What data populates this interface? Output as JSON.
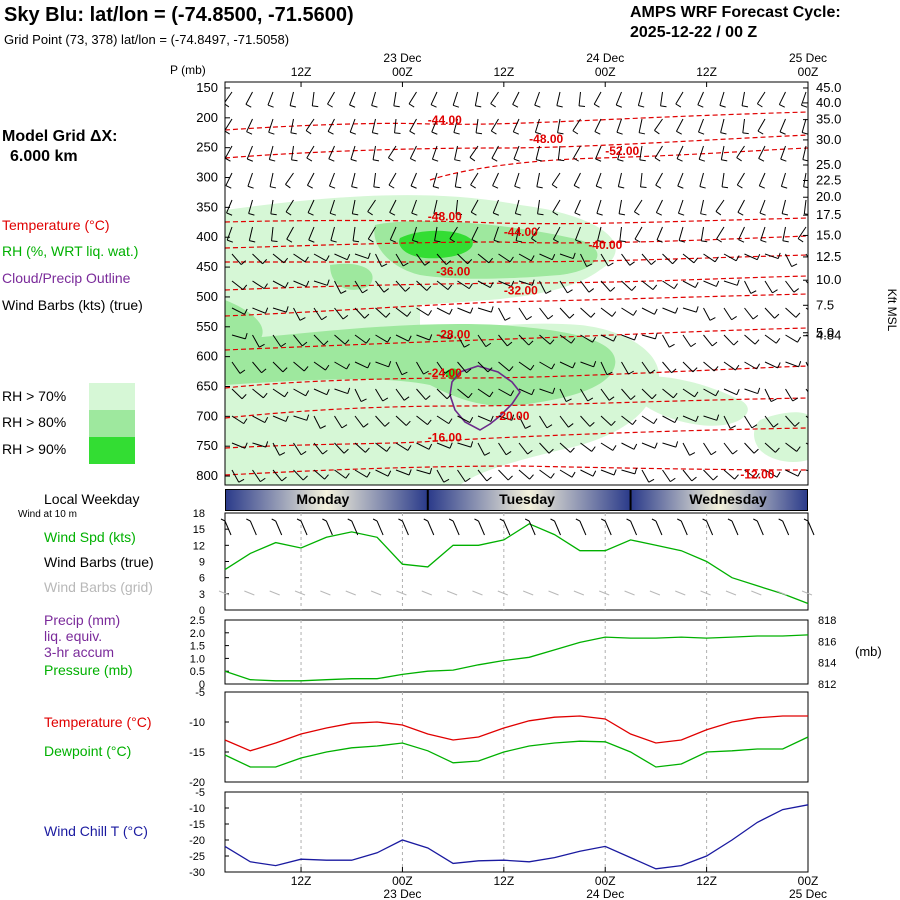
{
  "header": {
    "title": "Sky Blu:  lat/lon = (-74.8500, -71.5600)",
    "grid_point": "Grid Point (73, 378) lat/lon = (-74.8497, -71.5058)",
    "cycle_label": "AMPS WRF Forecast Cycle:",
    "cycle_value": "2025-12-22 / 00  Z"
  },
  "left_panel": {
    "model_grid_label": "Model Grid ΔX:",
    "model_grid_value": "6.000 km",
    "legend_temperature": "Temperature (°C)",
    "legend_rh": "RH (%, WRT liq. wat.)",
    "legend_cloud": "Cloud/Precip Outline",
    "legend_wind": "Wind Barbs (kts) (true)",
    "rh70": "RH > 70%",
    "rh80": "RH > 80%",
    "rh90": "RH > 90%",
    "local_weekday": "Local Weekday",
    "wind_at_10m": "Wind at 10 m",
    "wind_spd": "Wind Spd (kts)",
    "wind_barbs_true": "Wind Barbs (true)",
    "wind_barbs_grid": "Wind Barbs (grid)",
    "precip": "Precip (mm)",
    "liq_equiv": "liq. equiv.",
    "accum": "3-hr accum",
    "pressure": "Pressure (mb)",
    "temperature2": "Temperature (°C)",
    "dewpoint": "Dewpoint (°C)",
    "windchill": "Wind Chill T (°C)"
  },
  "colors": {
    "rh70": "#d6f7d6",
    "rh80": "#9ee89e",
    "rh90": "#33dd33",
    "temperature": "#e00000",
    "dewpoint": "#00b000",
    "pressure": "#00b000",
    "windspeed": "#00b000",
    "windchill": "#1a1aa0",
    "cloud_outline": "#6a2a8a"
  },
  "time_axis": {
    "top_ticks": [
      {
        "t": 12,
        "lines": [
          "",
          "12Z"
        ]
      },
      {
        "t": 24,
        "lines": [
          "23 Dec",
          "00Z"
        ]
      },
      {
        "t": 36,
        "lines": [
          "",
          "12Z"
        ]
      },
      {
        "t": 48,
        "lines": [
          "24 Dec",
          "00Z"
        ]
      },
      {
        "t": 60,
        "lines": [
          "",
          "12Z"
        ]
      },
      {
        "t": 72,
        "lines": [
          "25 Dec",
          "00Z"
        ]
      }
    ],
    "bottom_ticks": [
      {
        "t": 12,
        "lines": [
          "12Z",
          ""
        ]
      },
      {
        "t": 24,
        "lines": [
          "00Z",
          "23 Dec"
        ]
      },
      {
        "t": 36,
        "lines": [
          "12Z",
          ""
        ]
      },
      {
        "t": 48,
        "lines": [
          "00Z",
          "24 Dec"
        ]
      },
      {
        "t": 60,
        "lines": [
          "12Z",
          ""
        ]
      },
      {
        "t": 72,
        "lines": [
          "00Z",
          "25 Dec"
        ]
      }
    ],
    "range_hours": [
      3,
      72
    ]
  },
  "weekday_bar": {
    "days": [
      {
        "name": "Monday",
        "start": 3,
        "end": 27
      },
      {
        "name": "Tuesday",
        "start": 27,
        "end": 51
      },
      {
        "name": "Wednesday",
        "start": 51,
        "end": 72
      }
    ]
  },
  "chart_data": [
    {
      "type": "heatmap",
      "name": "cross-section",
      "ylabel": "P (mb)",
      "y2label": "Kft MSL",
      "pressure_ticks": [
        "150",
        "200",
        "250",
        "300",
        "350",
        "400",
        "450",
        "500",
        "550",
        "600",
        "650",
        "700",
        "750",
        "800"
      ],
      "height_ticks": [
        {
          "p": 150,
          "label": "45.0"
        },
        {
          "p": 175,
          "label": "40.0"
        },
        {
          "p": 203,
          "label": "35.0"
        },
        {
          "p": 237,
          "label": "30.0"
        },
        {
          "p": 279,
          "label": "25.0"
        },
        {
          "p": 305,
          "label": "22.5"
        },
        {
          "p": 333,
          "label": "20.0"
        },
        {
          "p": 363,
          "label": "17.5"
        },
        {
          "p": 397,
          "label": "15.0"
        },
        {
          "p": 433,
          "label": "12.5"
        },
        {
          "p": 472,
          "label": "10.0"
        },
        {
          "p": 514,
          "label": "7.5"
        },
        {
          "p": 560,
          "label": "5.0"
        },
        {
          "p": 565,
          "label": "4.84"
        }
      ],
      "temperature_labels": [
        {
          "t": 27,
          "p": 210,
          "label": "-44.00"
        },
        {
          "t": 39,
          "p": 242,
          "label": "-48.00"
        },
        {
          "t": 48,
          "p": 262,
          "label": "-52.00"
        },
        {
          "t": 27,
          "p": 372,
          "label": "-48.00"
        },
        {
          "t": 36,
          "p": 398,
          "label": "-44.00"
        },
        {
          "t": 46,
          "p": 420,
          "label": "-40.00"
        },
        {
          "t": 28,
          "p": 464,
          "label": "-36.00"
        },
        {
          "t": 36,
          "p": 496,
          "label": "-32.00"
        },
        {
          "t": 28,
          "p": 570,
          "label": "-28.00"
        },
        {
          "t": 27,
          "p": 634,
          "label": "-24.00"
        },
        {
          "t": 35,
          "p": 706,
          "label": "-20.00"
        },
        {
          "t": 27,
          "p": 742,
          "label": "-16.00"
        },
        {
          "t": 64,
          "p": 804,
          "label": "-12.00"
        }
      ]
    },
    {
      "type": "line",
      "name": "wind-speed",
      "ylabel": "Wind Spd (kts)",
      "ylim": [
        0,
        18
      ],
      "yticks": [
        "0",
        "3",
        "6",
        "9",
        "12",
        "15",
        "18"
      ],
      "x": [
        3,
        6,
        9,
        12,
        15,
        18,
        21,
        24,
        27,
        30,
        33,
        36,
        39,
        42,
        45,
        48,
        51,
        54,
        57,
        60,
        63,
        66,
        69,
        72
      ],
      "series": [
        {
          "values": [
            7.5,
            10.5,
            12.5,
            11.5,
            13.5,
            14.5,
            13.5,
            8.5,
            8,
            12,
            12,
            13,
            16,
            14,
            11,
            11,
            13,
            12,
            11,
            9,
            6,
            4.5,
            3,
            1.2
          ]
        }
      ]
    },
    {
      "type": "line",
      "name": "precip-pressure",
      "ylabel": "Precip (mm)",
      "y2label": "(mb)",
      "ylim": [
        0,
        2.5
      ],
      "yticks": [
        "0",
        "0.5",
        "1.0",
        "1.5",
        "2.0",
        "2.5"
      ],
      "y2lim": [
        812,
        818
      ],
      "y2ticks": [
        "812",
        "814",
        "816",
        "818"
      ],
      "x": [
        3,
        6,
        9,
        12,
        15,
        18,
        21,
        24,
        27,
        30,
        33,
        36,
        39,
        42,
        45,
        48,
        51,
        54,
        57,
        60,
        63,
        66,
        69,
        72
      ],
      "series": [
        {
          "values": [
            813.2,
            812.4,
            812.3,
            812.3,
            812.4,
            812.5,
            812.5,
            812.9,
            813.2,
            813.3,
            813.8,
            814.2,
            814.5,
            815.2,
            815.9,
            816.4,
            816.3,
            816.3,
            816.4,
            816.3,
            816.4,
            816.5,
            816.5,
            816.6
          ]
        }
      ]
    },
    {
      "type": "line",
      "name": "temperature-dewpoint",
      "ylim": [
        -20,
        -5
      ],
      "yticks": [
        "-20",
        "-15",
        "-10",
        "-5"
      ],
      "x": [
        3,
        6,
        9,
        12,
        15,
        18,
        21,
        24,
        27,
        30,
        33,
        36,
        39,
        42,
        45,
        48,
        51,
        54,
        57,
        60,
        63,
        66,
        69,
        72
      ],
      "series": [
        {
          "name": "Temperature (°C)",
          "values": [
            -13,
            -14.8,
            -13.5,
            -12,
            -11,
            -10.2,
            -10,
            -10.5,
            -12,
            -13,
            -12.5,
            -11,
            -9.8,
            -9.2,
            -9,
            -9.5,
            -12,
            -13.5,
            -13,
            -11.3,
            -10,
            -9.3,
            -9,
            -9
          ]
        },
        {
          "name": "Dewpoint (°C)",
          "values": [
            -15.5,
            -17.5,
            -17.5,
            -16,
            -15,
            -14.3,
            -14,
            -13.5,
            -14.8,
            -16.8,
            -16.5,
            -15,
            -14,
            -13.5,
            -13.2,
            -13.3,
            -15,
            -17.5,
            -17,
            -15,
            -14.8,
            -14.5,
            -14.5,
            -12.5
          ]
        }
      ]
    },
    {
      "type": "line",
      "name": "wind-chill",
      "ylabel": "Wind Chill T (°C)",
      "ylim": [
        -30,
        -5
      ],
      "yticks": [
        "-30",
        "-25",
        "-20",
        "-15",
        "-10",
        "-5"
      ],
      "x": [
        3,
        6,
        9,
        12,
        15,
        18,
        21,
        24,
        27,
        30,
        33,
        36,
        39,
        42,
        45,
        48,
        51,
        54,
        57,
        60,
        63,
        66,
        69,
        72
      ],
      "series": [
        {
          "values": [
            -22,
            -26.8,
            -28,
            -26,
            -26.3,
            -26.3,
            -24,
            -20,
            -22.5,
            -27.3,
            -26.5,
            -26.3,
            -26.8,
            -25.5,
            -23.5,
            -22,
            -25.5,
            -29,
            -28,
            -25,
            -20,
            -14.5,
            -10.5,
            -9
          ]
        }
      ]
    }
  ]
}
